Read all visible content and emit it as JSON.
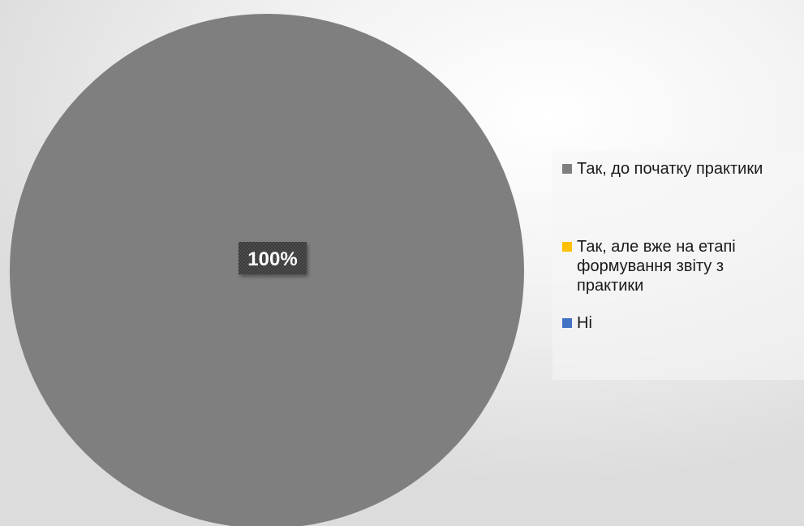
{
  "chart_data": {
    "type": "pie",
    "categories": [
      "Так, до початку практики",
      "Так, але вже на етапі формування звіту з практики",
      "Ні"
    ],
    "values": [
      100,
      0,
      0
    ],
    "colors": [
      "#7f7f7f",
      "#ffc000",
      "#4472c4"
    ],
    "data_labels": [
      "100%",
      "",
      ""
    ],
    "legend_placement": "right"
  },
  "legend": {
    "items": [
      {
        "label": "Так, до початку практики",
        "color": "#7f7f7f"
      },
      {
        "label": "Так, але вже на етапі формування звіту з практики",
        "color": "#ffc000"
      },
      {
        "label": "Ні",
        "color": "#4472c4"
      }
    ]
  }
}
